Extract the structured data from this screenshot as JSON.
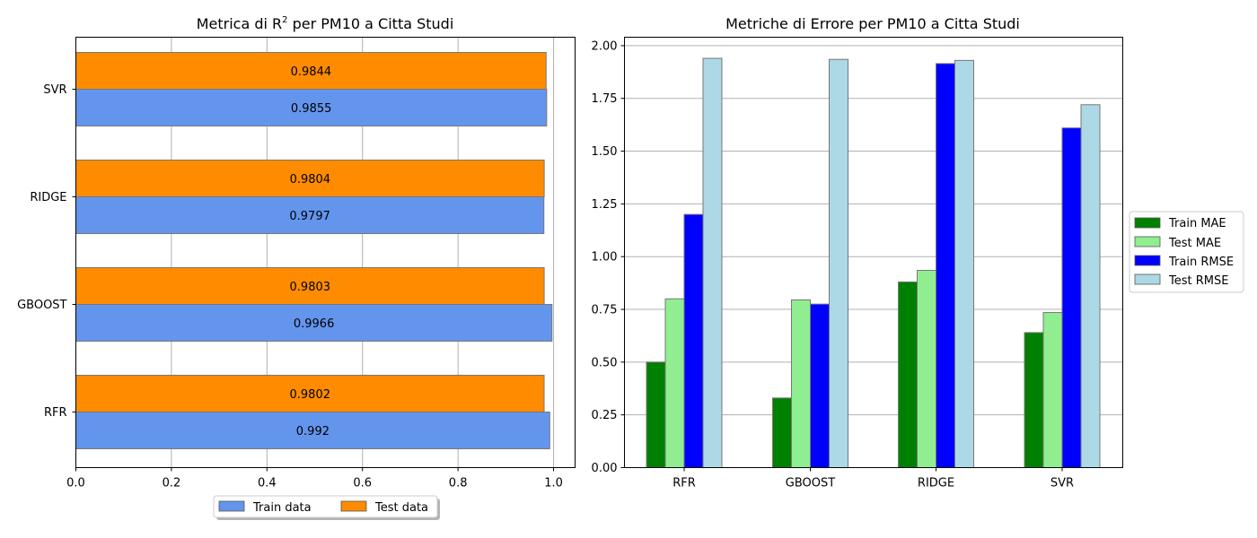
{
  "chart_data": [
    {
      "type": "bar",
      "orientation": "horizontal",
      "title_main": "Metrica di R",
      "title_sup": "2",
      "title_rest": " per PM10 a Citta Studi",
      "categories": [
        "RFR",
        "GBOOST",
        "RIDGE",
        "SVR"
      ],
      "series": [
        {
          "name": "Train data",
          "values": [
            0.992,
            0.9966,
            0.9797,
            0.9855
          ],
          "labels": [
            "0.992",
            "0.9966",
            "0.9797",
            "0.9855"
          ]
        },
        {
          "name": "Test data",
          "values": [
            0.9802,
            0.9803,
            0.9804,
            0.9844
          ],
          "labels": [
            "0.9802",
            "0.9803",
            "0.9804",
            "0.9844"
          ]
        }
      ],
      "xlim": [
        0,
        1.045
      ],
      "xticks": [
        "0.0",
        "0.2",
        "0.4",
        "0.6",
        "0.8",
        "1.0"
      ],
      "grid": true,
      "legend_position": "bottom-center",
      "colors": {
        "Train data": "#6495ED",
        "Test data": "#FF8C00"
      }
    },
    {
      "type": "bar",
      "title": "Metriche di Errore per PM10 a Citta Studi",
      "categories": [
        "RFR",
        "GBOOST",
        "RIDGE",
        "SVR"
      ],
      "series": [
        {
          "name": "Train MAE",
          "values": [
            0.5,
            0.33,
            0.88,
            0.64
          ]
        },
        {
          "name": "Test MAE",
          "values": [
            0.8,
            0.795,
            0.935,
            0.735
          ]
        },
        {
          "name": "Train RMSE",
          "values": [
            1.2,
            0.775,
            1.915,
            1.61
          ]
        },
        {
          "name": "Test RMSE",
          "values": [
            1.94,
            1.935,
            1.93,
            1.72
          ]
        }
      ],
      "ylim": [
        0,
        2.04
      ],
      "yticks": [
        "0.00",
        "0.25",
        "0.50",
        "0.75",
        "1.00",
        "1.25",
        "1.50",
        "1.75",
        "2.00"
      ],
      "grid": true,
      "legend_position": "right",
      "colors": {
        "Train MAE": "#008000",
        "Test MAE": "#90EE90",
        "Train RMSE": "#0000FF",
        "Test RMSE": "#ADD8E6"
      }
    }
  ]
}
